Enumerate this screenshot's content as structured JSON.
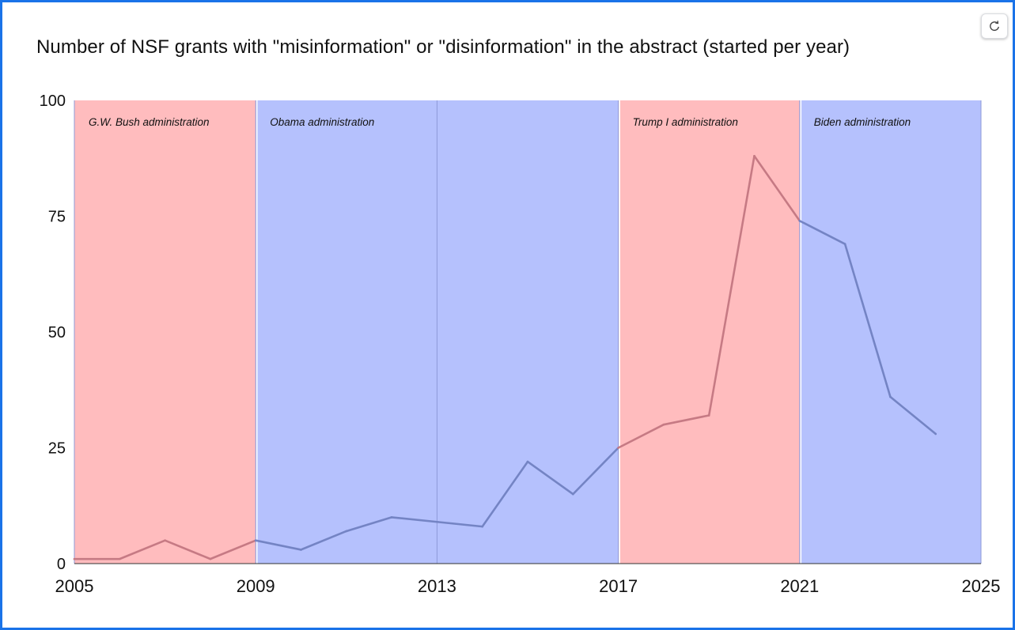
{
  "chart_data": {
    "type": "line",
    "title": "Number of NSF grants with \"misinformation\" or \"disinformation\" in the abstract (started per year)",
    "xlim": [
      2005,
      2025
    ],
    "ylim": [
      0,
      100
    ],
    "x_ticks": [
      2005,
      2009,
      2013,
      2017,
      2021,
      2025
    ],
    "y_ticks": [
      0,
      25,
      50,
      75,
      100
    ],
    "x_tick_labels": [
      "2005",
      "2009",
      "2013",
      "2017",
      "2021",
      "2025"
    ],
    "y_tick_labels": [
      "0",
      "25",
      "50",
      "75",
      "100"
    ],
    "points": [
      {
        "x": 2005,
        "y": 1
      },
      {
        "x": 2006,
        "y": 1
      },
      {
        "x": 2007,
        "y": 5
      },
      {
        "x": 2008,
        "y": 1
      },
      {
        "x": 2009,
        "y": 5
      },
      {
        "x": 2010,
        "y": 3
      },
      {
        "x": 2011,
        "y": 7
      },
      {
        "x": 2012,
        "y": 10
      },
      {
        "x": 2013,
        "y": 9
      },
      {
        "x": 2014,
        "y": 8
      },
      {
        "x": 2015,
        "y": 22
      },
      {
        "x": 2016,
        "y": 15
      },
      {
        "x": 2017,
        "y": 25
      },
      {
        "x": 2018,
        "y": 30
      },
      {
        "x": 2019,
        "y": 32
      },
      {
        "x": 2020,
        "y": 88
      },
      {
        "x": 2021,
        "y": 74
      },
      {
        "x": 2022,
        "y": 69
      },
      {
        "x": 2023,
        "y": 36
      },
      {
        "x": 2024,
        "y": 28
      }
    ],
    "bands": [
      {
        "label": "G.W. Bush administration",
        "start": 2005,
        "end": 2009,
        "party": "republican"
      },
      {
        "label": "Obama administration",
        "start": 2009,
        "end": 2017,
        "party": "democratic"
      },
      {
        "label": "Trump I administration",
        "start": 2017,
        "end": 2021,
        "party": "republican"
      },
      {
        "label": "Biden administration",
        "start": 2021,
        "end": 2025,
        "party": "democratic"
      }
    ],
    "colors": {
      "republican_band": "#ffbcbe",
      "democratic_band": "#b5c1fd",
      "republican_line": "#c67a84",
      "democratic_line": "#7484c4",
      "band_border": "#8e9bd8"
    },
    "grid": false,
    "legend": "none"
  },
  "controls": {
    "refresh_icon": "refresh-icon"
  }
}
